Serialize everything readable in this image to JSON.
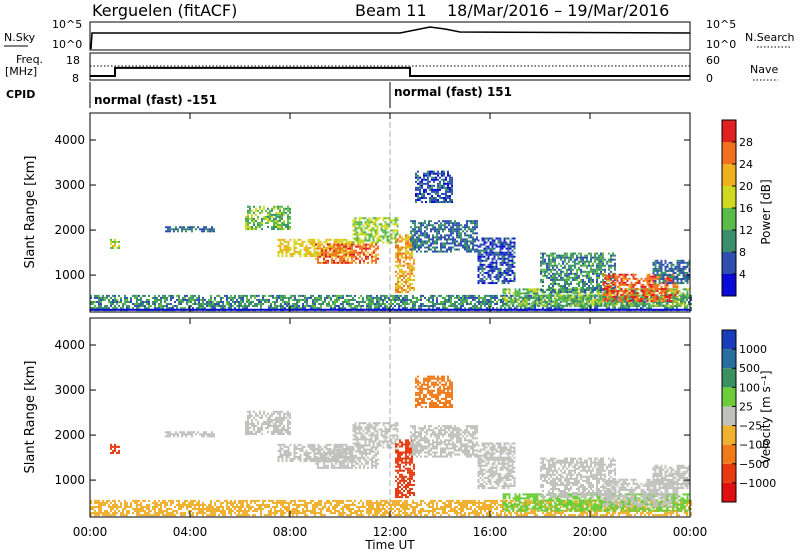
{
  "chart_data": {
    "type": "heatmap",
    "header": {
      "radar": "Kerguelen (fitACF)",
      "beam": "Beam 11",
      "date_range": "18/Mar/2016 – 19/Mar/2016"
    },
    "top_panels": {
      "sky_panel": {
        "left_label": "N.Sky",
        "left_ticks": [
          "10^5",
          "10^0"
        ],
        "right_label": "N.Search",
        "right_ticks": [
          "10^5",
          "10^0"
        ]
      },
      "freq_panel": {
        "left_label_line1": "Freq.",
        "left_label_line2": "[MHz]",
        "left_ticks": [
          "18",
          "8"
        ],
        "right_label": "Nave",
        "right_ticks": [
          "60",
          "0"
        ],
        "freq_steps": [
          {
            "start_hour": 0.0,
            "end_hour": 1.0,
            "mhz": 9.5
          },
          {
            "start_hour": 1.0,
            "end_hour": 12.8,
            "mhz": 12.5
          },
          {
            "start_hour": 12.8,
            "end_hour": 24.0,
            "mhz": 9.5
          }
        ]
      },
      "cpid": {
        "label": "CPID",
        "segments": [
          {
            "text": "normal (fast) -151",
            "start_hour": 0.0
          },
          {
            "text": "normal (fast) 151",
            "start_hour": 12.0
          }
        ]
      }
    },
    "x_axis": {
      "label": "Time UT",
      "ticks": [
        "00:00",
        "04:00",
        "08:00",
        "12:00",
        "16:00",
        "20:00",
        "00:00"
      ],
      "range_hours": [
        0,
        24
      ]
    },
    "y_axis": {
      "label": "Slant Range [km]",
      "ticks": [
        "1000",
        "2000",
        "3000",
        "4000"
      ],
      "range_km": [
        180,
        4600
      ]
    },
    "power_panel": {
      "colorbar_label": "Power [dB]",
      "colorbar_ticks": [
        "4",
        "8",
        "12",
        "16",
        "20",
        "24",
        "28"
      ],
      "colors": [
        "#0a0ad6",
        "#2f4fb0",
        "#3a8f6a",
        "#5aba4a",
        "#cfd91f",
        "#f0b020",
        "#f07020",
        "#e02020"
      ]
    },
    "velocity_panel": {
      "colorbar_label": "Velocity [m s⁻¹]",
      "colorbar_ticks": [
        "1000",
        "500",
        "100",
        "25",
        "−25",
        "−100",
        "−500",
        "−1000"
      ],
      "colors": [
        "#1a3cb8",
        "#2a6ea0",
        "#3a9060",
        "#6ccc3a",
        "#c0c0bc",
        "#f0b030",
        "#f07a1a",
        "#e83a10",
        "#e01010"
      ]
    },
    "echo_regions": [
      {
        "start_hour": 0.0,
        "end_hour": 24.0,
        "range_low": 200,
        "range_high": 520,
        "power": 10,
        "velocity": -60
      },
      {
        "start_hour": 0.8,
        "end_hour": 1.2,
        "range_low": 1580,
        "range_high": 1800,
        "power": 18,
        "velocity": -600
      },
      {
        "start_hour": 3.0,
        "end_hour": 5.0,
        "range_low": 1950,
        "range_high": 2050,
        "power": 8,
        "velocity": 0
      },
      {
        "start_hour": 6.2,
        "end_hour": 8.0,
        "range_low": 2000,
        "range_high": 2500,
        "power": 14,
        "velocity": 0
      },
      {
        "start_hour": 7.5,
        "end_hour": 10.5,
        "range_low": 1400,
        "range_high": 1800,
        "power": 20,
        "velocity": 0
      },
      {
        "start_hour": 9.0,
        "end_hour": 11.5,
        "range_low": 1250,
        "range_high": 1700,
        "power": 26,
        "velocity": 0
      },
      {
        "start_hour": 10.5,
        "end_hour": 12.3,
        "range_low": 1700,
        "range_high": 2250,
        "power": 16,
        "velocity": 0
      },
      {
        "start_hour": 12.2,
        "end_hour": 13.0,
        "range_low": 600,
        "range_high": 1900,
        "power": 22,
        "velocity": -700
      },
      {
        "start_hour": 12.8,
        "end_hour": 15.5,
        "range_low": 1500,
        "range_high": 2200,
        "power": 8,
        "velocity": 0
      },
      {
        "start_hour": 13.0,
        "end_hour": 14.5,
        "range_low": 2600,
        "range_high": 3300,
        "power": 6,
        "velocity": -300
      },
      {
        "start_hour": 15.5,
        "end_hour": 17.0,
        "range_low": 800,
        "range_high": 1800,
        "power": 6,
        "velocity": 0
      },
      {
        "start_hour": 16.5,
        "end_hour": 24.0,
        "range_low": 300,
        "range_high": 700,
        "power": 14,
        "velocity": 80
      },
      {
        "start_hour": 18.0,
        "end_hour": 21.0,
        "range_low": 600,
        "range_high": 1500,
        "power": 10,
        "velocity": 0
      },
      {
        "start_hour": 20.5,
        "end_hour": 23.5,
        "range_low": 400,
        "range_high": 1000,
        "power": 27,
        "velocity": 0
      },
      {
        "start_hour": 22.5,
        "end_hour": 24.0,
        "range_low": 800,
        "range_high": 1300,
        "power": 8,
        "velocity": 0
      }
    ]
  }
}
